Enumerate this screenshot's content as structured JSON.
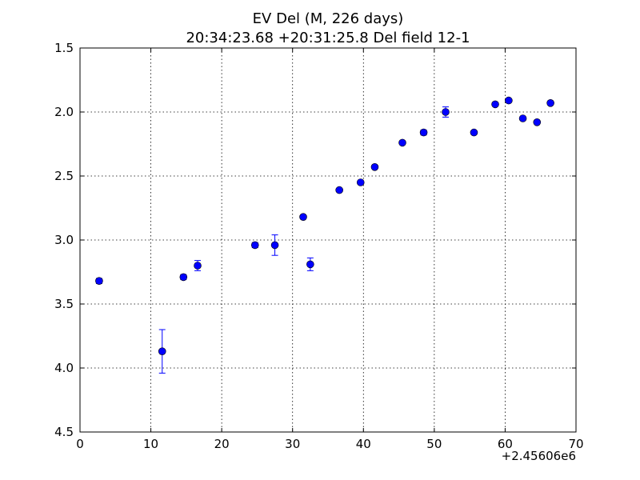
{
  "chart_data": {
    "type": "scatter",
    "title": "EV Del (M, 226 days)",
    "subtitle": "20:34:23.68 +20:31:25.8 Del field 12-1",
    "xlabel": "",
    "ylabel": "",
    "x_offset_label": "+2.45606e6",
    "xlim": [
      0,
      70
    ],
    "ylim": [
      4.5,
      1.5
    ],
    "y_inverted": true,
    "grid": true,
    "x_ticks": [
      "0",
      "10",
      "20",
      "30",
      "40",
      "50",
      "60",
      "70"
    ],
    "y_ticks": [
      "1.5",
      "2.0",
      "2.5",
      "3.0",
      "3.5",
      "4.0",
      "4.5"
    ],
    "marker_color": "#0000ff",
    "series": [
      {
        "points": [
          {
            "x": 2.7,
            "y": 3.32,
            "err": 0.02
          },
          {
            "x": 11.6,
            "y": 3.87,
            "err": 0.17
          },
          {
            "x": 14.6,
            "y": 3.29,
            "err": 0.02
          },
          {
            "x": 16.6,
            "y": 3.2,
            "err": 0.04
          },
          {
            "x": 24.7,
            "y": 3.04,
            "err": 0.02
          },
          {
            "x": 27.5,
            "y": 3.04,
            "err": 0.08
          },
          {
            "x": 31.5,
            "y": 2.82,
            "err": 0.01
          },
          {
            "x": 32.5,
            "y": 3.19,
            "err": 0.05
          },
          {
            "x": 36.6,
            "y": 2.61,
            "err": 0.01
          },
          {
            "x": 39.6,
            "y": 2.55,
            "err": 0.01
          },
          {
            "x": 41.6,
            "y": 2.43,
            "err": 0.01
          },
          {
            "x": 45.5,
            "y": 2.24,
            "err": 0.01
          },
          {
            "x": 48.5,
            "y": 2.16,
            "err": 0.02
          },
          {
            "x": 51.6,
            "y": 2.0,
            "err": 0.04
          },
          {
            "x": 55.6,
            "y": 2.16,
            "err": 0.01
          },
          {
            "x": 58.6,
            "y": 1.94,
            "err": 0.01
          },
          {
            "x": 60.5,
            "y": 1.91,
            "err": 0.01
          },
          {
            "x": 62.5,
            "y": 2.05,
            "err": 0.01
          },
          {
            "x": 64.5,
            "y": 2.08,
            "err": 0.01
          },
          {
            "x": 66.4,
            "y": 1.93,
            "err": 0.01
          }
        ]
      }
    ]
  }
}
